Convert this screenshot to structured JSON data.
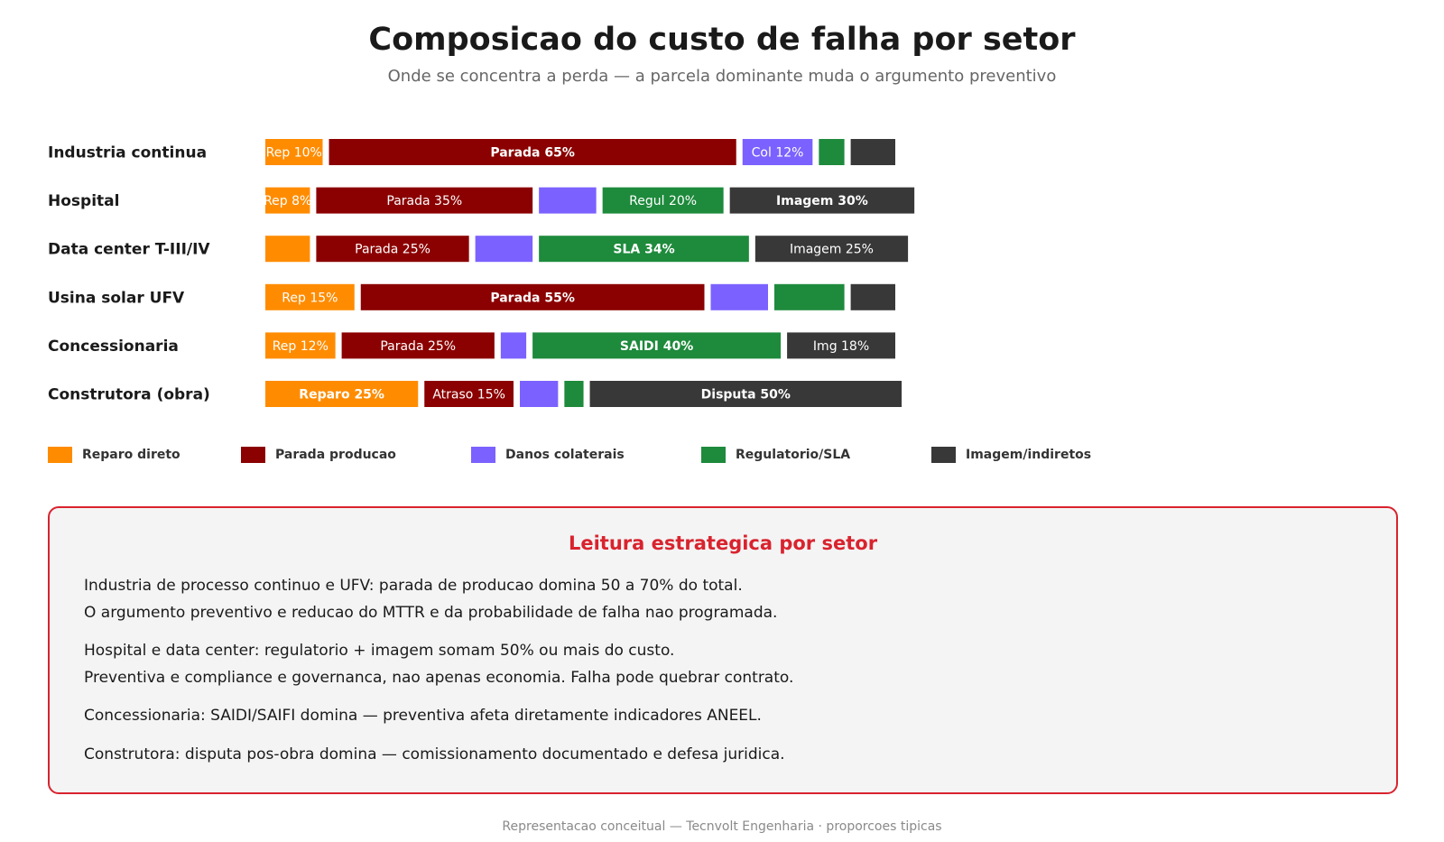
{
  "chart_data": {
    "type": "bar",
    "orientation": "horizontal",
    "stacked": true,
    "title": "Composicao do custo de falha por setor",
    "subtitle": "Onde se concentra a perda — a parcela dominante muda o argumento preventivo",
    "categories": [
      "Industria continua",
      "Hospital",
      "Data center T-III/IV",
      "Usina solar UFV",
      "Concessionaria",
      "Construtora (obra)"
    ],
    "series": [
      {
        "name": "Reparo direto",
        "color": "#ff8c00",
        "text_color": "#ffffff",
        "values": [
          10,
          8,
          8,
          15,
          12,
          25
        ],
        "labels": [
          "Rep 10%",
          "Rep 8%",
          "",
          "Rep 15%",
          "Rep 12%",
          "Reparo 25%"
        ]
      },
      {
        "name": "Parada producao",
        "color": "#8b0000",
        "text_color": "#ffffff",
        "values": [
          65,
          35,
          25,
          55,
          25,
          15
        ],
        "labels": [
          "Parada 65%",
          "Parada 35%",
          "Parada 25%",
          "Parada 55%",
          "Parada 25%",
          "Atraso 15%"
        ]
      },
      {
        "name": "Danos colaterais",
        "color": "#7b61ff",
        "text_color": "#ffffff",
        "values": [
          12,
          10,
          10,
          10,
          5,
          7
        ],
        "labels": [
          "Col 12%",
          "",
          "",
          "",
          "",
          ""
        ]
      },
      {
        "name": "Regulatorio/SLA",
        "color": "#1e8a3c",
        "text_color": "#ffffff",
        "values": [
          5,
          20,
          34,
          12,
          40,
          4
        ],
        "labels": [
          "",
          "Regul 20%",
          "SLA 34%",
          "",
          "SAIDI 40%",
          ""
        ]
      },
      {
        "name": "Imagem/indiretos",
        "color": "#383838",
        "text_color": "#ffffff",
        "values": [
          8,
          30,
          25,
          8,
          18,
          50
        ],
        "labels": [
          "",
          "Imagem 30%",
          "Imagem 25%",
          "",
          "Img 18%",
          "Disputa 50%"
        ]
      }
    ],
    "dominant_label_bold": [
      [
        "Parada 65%"
      ],
      [
        "Imagem 30%"
      ],
      [
        "SLA 34%"
      ],
      [
        "Parada 55%"
      ],
      [
        "SAIDI 40%"
      ],
      [
        "Reparo 25%",
        "Disputa 50%"
      ]
    ],
    "grid": false,
    "legend_position": "bottom-left"
  },
  "box": {
    "title": "Leitura estrategica por setor",
    "title_color": "#d9232e",
    "border_color": "#d9232e",
    "lines": [
      "Industria de processo continuo e UFV: parada de producao domina 50 a 70% do total.",
      "O argumento preventivo e reducao do MTTR e da probabilidade de falha nao programada.",
      "Hospital e data center: regulatorio + imagem somam 50% ou mais do custo.",
      "Preventiva e compliance e governanca, nao apenas economia. Falha pode quebrar contrato.",
      "Concessionaria: SAIDI/SAIFI domina — preventiva afeta diretamente indicadores ANEEL.",
      "Construtora: disputa pos-obra domina — comissionamento documentado e defesa juridica."
    ]
  },
  "footer": "Representacao conceitual — Tecnvolt Engenharia · proporcoes tipicas"
}
